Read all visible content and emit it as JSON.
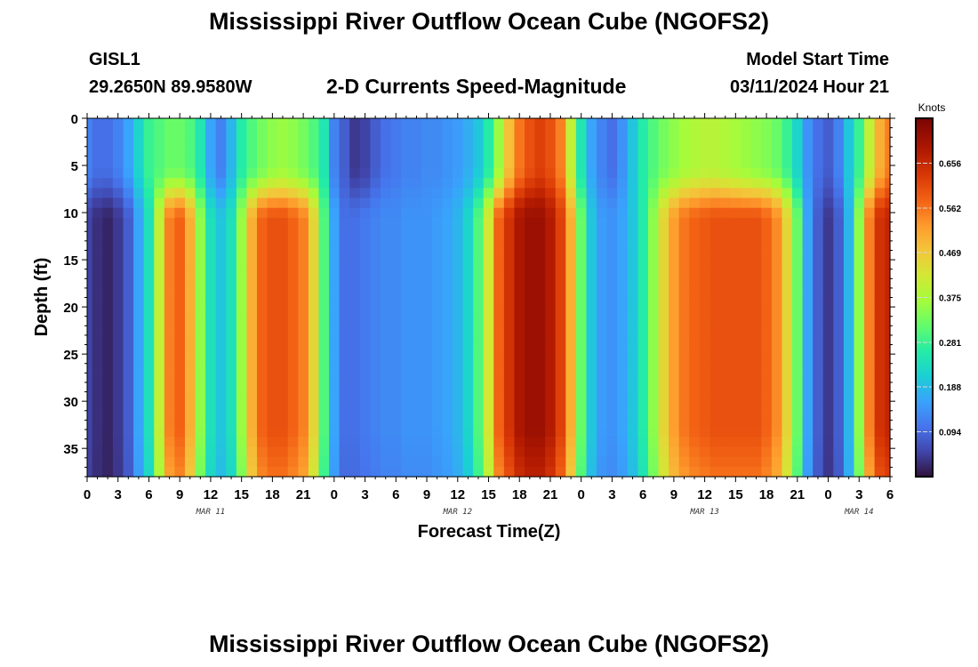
{
  "page": {
    "title_top": "Mississippi River Outflow Ocean Cube (NGOFS2)",
    "title_bottom": "Mississippi River Outflow Ocean Cube (NGOFS2)",
    "station_id": "GISL1",
    "station_coords": "29.2650N  89.9580W",
    "subtitle": "2-D Currents Speed-Magnitude",
    "model_start_label": "Model Start Time",
    "model_start_value": "03/11/2024 Hour 21"
  },
  "chart_data": {
    "type": "heatmap",
    "title": "2-D Currents Speed-Magnitude",
    "xlabel": "Forecast Time(Z)",
    "ylabel": "Depth (ft)",
    "colorbar_label": "Knots",
    "x_hours_range": [
      0,
      78
    ],
    "ylim": [
      0,
      38
    ],
    "y_ticks": [
      0,
      5,
      10,
      15,
      20,
      25,
      30,
      35
    ],
    "x_tick_labels": [
      "0",
      "3",
      "6",
      "9",
      "12",
      "15",
      "18",
      "21",
      "0",
      "3",
      "6",
      "9",
      "12",
      "15",
      "18",
      "21",
      "0",
      "3",
      "6",
      "9",
      "12",
      "15",
      "18",
      "21",
      "0",
      "3",
      "6"
    ],
    "date_labels": [
      {
        "label": "MAR 11",
        "hour": 12
      },
      {
        "label": "MAR 12",
        "hour": 36
      },
      {
        "label": "MAR 13",
        "hour": 60
      },
      {
        "label": "MAR 14",
        "hour": 75
      }
    ],
    "colorbar_ticks": [
      "0.094",
      "0.188",
      "0.281",
      "0.375",
      "0.469",
      "0.562",
      "0.656"
    ],
    "color_range": [
      0.0,
      0.75
    ],
    "columns": [
      {
        "hour": 0,
        "surface": 0.12,
        "deep": 0.05
      },
      {
        "hour": 1,
        "surface": 0.1,
        "deep": 0.03
      },
      {
        "hour": 2,
        "surface": 0.1,
        "deep": 0.02
      },
      {
        "hour": 3,
        "surface": 0.12,
        "deep": 0.04
      },
      {
        "hour": 4,
        "surface": 0.16,
        "deep": 0.08
      },
      {
        "hour": 5,
        "surface": 0.22,
        "deep": 0.16
      },
      {
        "hour": 6,
        "surface": 0.28,
        "deep": 0.24
      },
      {
        "hour": 7,
        "surface": 0.3,
        "deep": 0.4
      },
      {
        "hour": 8,
        "surface": 0.32,
        "deep": 0.55
      },
      {
        "hour": 9,
        "surface": 0.32,
        "deep": 0.58
      },
      {
        "hour": 10,
        "surface": 0.3,
        "deep": 0.5
      },
      {
        "hour": 11,
        "surface": 0.25,
        "deep": 0.35
      },
      {
        "hour": 12,
        "surface": 0.16,
        "deep": 0.24
      },
      {
        "hour": 13,
        "surface": 0.12,
        "deep": 0.2
      },
      {
        "hour": 14,
        "surface": 0.18,
        "deep": 0.24
      },
      {
        "hour": 15,
        "surface": 0.26,
        "deep": 0.36
      },
      {
        "hour": 16,
        "surface": 0.3,
        "deep": 0.5
      },
      {
        "hour": 17,
        "surface": 0.33,
        "deep": 0.58
      },
      {
        "hour": 18,
        "surface": 0.35,
        "deep": 0.6
      },
      {
        "hour": 19,
        "surface": 0.36,
        "deep": 0.6
      },
      {
        "hour": 20,
        "surface": 0.35,
        "deep": 0.58
      },
      {
        "hour": 21,
        "surface": 0.33,
        "deep": 0.55
      },
      {
        "hour": 22,
        "surface": 0.3,
        "deep": 0.45
      },
      {
        "hour": 23,
        "surface": 0.25,
        "deep": 0.3
      },
      {
        "hour": 24,
        "surface": 0.12,
        "deep": 0.16
      },
      {
        "hour": 25,
        "surface": 0.08,
        "deep": 0.1
      },
      {
        "hour": 26,
        "surface": 0.04,
        "deep": 0.1
      },
      {
        "hour": 27,
        "surface": 0.05,
        "deep": 0.11
      },
      {
        "hour": 28,
        "surface": 0.08,
        "deep": 0.12
      },
      {
        "hour": 29,
        "surface": 0.1,
        "deep": 0.13
      },
      {
        "hour": 30,
        "surface": 0.11,
        "deep": 0.13
      },
      {
        "hour": 31,
        "surface": 0.12,
        "deep": 0.14
      },
      {
        "hour": 32,
        "surface": 0.12,
        "deep": 0.14
      },
      {
        "hour": 33,
        "surface": 0.13,
        "deep": 0.14
      },
      {
        "hour": 34,
        "surface": 0.13,
        "deep": 0.15
      },
      {
        "hour": 35,
        "surface": 0.14,
        "deep": 0.16
      },
      {
        "hour": 36,
        "surface": 0.15,
        "deep": 0.18
      },
      {
        "hour": 37,
        "surface": 0.17,
        "deep": 0.22
      },
      {
        "hour": 38,
        "surface": 0.2,
        "deep": 0.3
      },
      {
        "hour": 39,
        "surface": 0.26,
        "deep": 0.42
      },
      {
        "hour": 40,
        "surface": 0.36,
        "deep": 0.58
      },
      {
        "hour": 41,
        "surface": 0.48,
        "deep": 0.64
      },
      {
        "hour": 42,
        "surface": 0.56,
        "deep": 0.69
      },
      {
        "hour": 43,
        "surface": 0.6,
        "deep": 0.71
      },
      {
        "hour": 44,
        "surface": 0.62,
        "deep": 0.71
      },
      {
        "hour": 45,
        "surface": 0.6,
        "deep": 0.68
      },
      {
        "hour": 46,
        "surface": 0.55,
        "deep": 0.62
      },
      {
        "hour": 47,
        "surface": 0.4,
        "deep": 0.5
      },
      {
        "hour": 48,
        "surface": 0.25,
        "deep": 0.32
      },
      {
        "hour": 49,
        "surface": 0.16,
        "deep": 0.2
      },
      {
        "hour": 50,
        "surface": 0.12,
        "deep": 0.15
      },
      {
        "hour": 51,
        "surface": 0.1,
        "deep": 0.14
      },
      {
        "hour": 52,
        "surface": 0.14,
        "deep": 0.16
      },
      {
        "hour": 53,
        "surface": 0.2,
        "deep": 0.2
      },
      {
        "hour": 54,
        "surface": 0.26,
        "deep": 0.26
      },
      {
        "hour": 55,
        "surface": 0.3,
        "deep": 0.35
      },
      {
        "hour": 56,
        "surface": 0.33,
        "deep": 0.45
      },
      {
        "hour": 57,
        "surface": 0.35,
        "deep": 0.52
      },
      {
        "hour": 58,
        "surface": 0.37,
        "deep": 0.56
      },
      {
        "hour": 59,
        "surface": 0.38,
        "deep": 0.58
      },
      {
        "hour": 60,
        "surface": 0.39,
        "deep": 0.59
      },
      {
        "hour": 61,
        "surface": 0.39,
        "deep": 0.6
      },
      {
        "hour": 62,
        "surface": 0.38,
        "deep": 0.6
      },
      {
        "hour": 63,
        "surface": 0.37,
        "deep": 0.6
      },
      {
        "hour": 64,
        "surface": 0.36,
        "deep": 0.6
      },
      {
        "hour": 65,
        "surface": 0.35,
        "deep": 0.6
      },
      {
        "hour": 66,
        "surface": 0.34,
        "deep": 0.58
      },
      {
        "hour": 67,
        "surface": 0.32,
        "deep": 0.54
      },
      {
        "hour": 68,
        "surface": 0.28,
        "deep": 0.45
      },
      {
        "hour": 69,
        "surface": 0.22,
        "deep": 0.32
      },
      {
        "hour": 70,
        "surface": 0.14,
        "deep": 0.16
      },
      {
        "hour": 71,
        "surface": 0.1,
        "deep": 0.08
      },
      {
        "hour": 72,
        "surface": 0.08,
        "deep": 0.04
      },
      {
        "hour": 73,
        "surface": 0.12,
        "deep": 0.08
      },
      {
        "hour": 74,
        "surface": 0.2,
        "deep": 0.18
      },
      {
        "hour": 75,
        "surface": 0.28,
        "deep": 0.35
      },
      {
        "hour": 76,
        "surface": 0.4,
        "deep": 0.55
      },
      {
        "hour": 77,
        "surface": 0.5,
        "deep": 0.64
      },
      {
        "hour": 78,
        "surface": 0.55,
        "deep": 0.66
      }
    ]
  }
}
